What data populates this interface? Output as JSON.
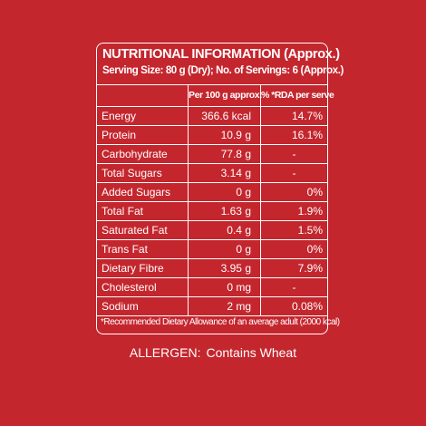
{
  "header": {
    "title": "NUTRITIONAL INFORMATION (Approx.)",
    "serving": "Serving Size: 80 g (Dry);  No. of Servings: 6 (Approx.)"
  },
  "columns": {
    "per100": "Per 100 g approx.",
    "rda": "% *RDA per serve"
  },
  "rows": [
    {
      "name": "Energy",
      "value": "366.6 kcal",
      "rda": "14.7%"
    },
    {
      "name": "Protein",
      "value": "10.9 g",
      "rda": "16.1%"
    },
    {
      "name": "Carbohydrate",
      "value": "77.8 g",
      "rda": "-"
    },
    {
      "name": "Total Sugars",
      "value": "3.14 g",
      "rda": "-"
    },
    {
      "name": "Added Sugars",
      "value": "0 g",
      "rda": "0%"
    },
    {
      "name": "Total Fat",
      "value": "1.63 g",
      "rda": "1.9%"
    },
    {
      "name": "Saturated Fat",
      "value": "0.4 g",
      "rda": "1.5%"
    },
    {
      "name": "Trans Fat",
      "value": "0 g",
      "rda": "0%"
    },
    {
      "name": "Dietary Fibre",
      "value": "3.95 g",
      "rda": "7.9%"
    },
    {
      "name": "Cholesterol",
      "value": "0 mg",
      "rda": "-"
    },
    {
      "name": "Sodium",
      "value": "2 mg",
      "rda": "0.08%"
    }
  ],
  "footnote": "*Recommended Dietary Allowance of an average adult (2000 kcal)",
  "allergen": {
    "label": "ALLERGEN:",
    "text": "Contains Wheat"
  },
  "colors": {
    "background": "#c4262e",
    "text": "#ffffff"
  }
}
